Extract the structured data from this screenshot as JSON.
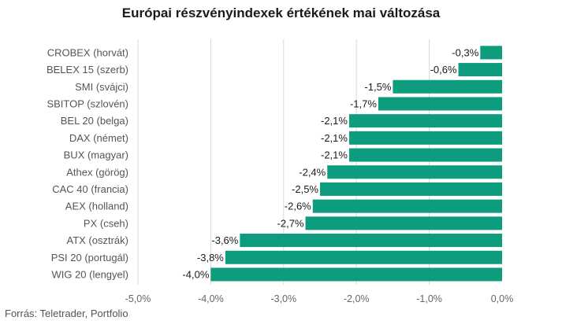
{
  "chart_data": {
    "type": "bar",
    "orientation": "horizontal",
    "title": "Európai részvényindexek értékének mai változása",
    "xlabel": "",
    "ylabel": "",
    "categories": [
      "CROBEX (horvát)",
      "BELEX 15 (szerb)",
      "SMI (svájci)",
      "SBITOP (szlovén)",
      "BEL 20 (belga)",
      "DAX (német)",
      "BUX (magyar)",
      "Athex (görög)",
      "CAC 40 (francia)",
      "AEX (holland)",
      "PX (cseh)",
      "ATX (osztrák)",
      "PSI 20 (portugál)",
      "WIG 20 (lengyel)"
    ],
    "values": [
      -0.3,
      -0.6,
      -1.5,
      -1.7,
      -2.1,
      -2.1,
      -2.1,
      -2.4,
      -2.5,
      -2.6,
      -2.7,
      -3.6,
      -3.8,
      -4.0
    ],
    "value_labels": [
      "-0,3%",
      "-0,6%",
      "-1,5%",
      "-1,7%",
      "-2,1%",
      "-2,1%",
      "-2,1%",
      "-2,4%",
      "-2,5%",
      "-2,6%",
      "-2,7%",
      "-3,6%",
      "-3,8%",
      "-4,0%"
    ],
    "xlim": [
      -5.0,
      0.0
    ],
    "xticks": [
      -5.0,
      -4.0,
      -3.0,
      -2.0,
      -1.0,
      0.0
    ],
    "xtick_labels": [
      "-5,0%",
      "-4,0%",
      "-3,0%",
      "-2,0%",
      "-1,0%",
      "0,0%"
    ],
    "grid": true,
    "legend": "none",
    "bar_color": "#0e9c7e",
    "grid_color": "#d9d9d9"
  },
  "source_note": "Forrás: Teletrader, Portfolio"
}
